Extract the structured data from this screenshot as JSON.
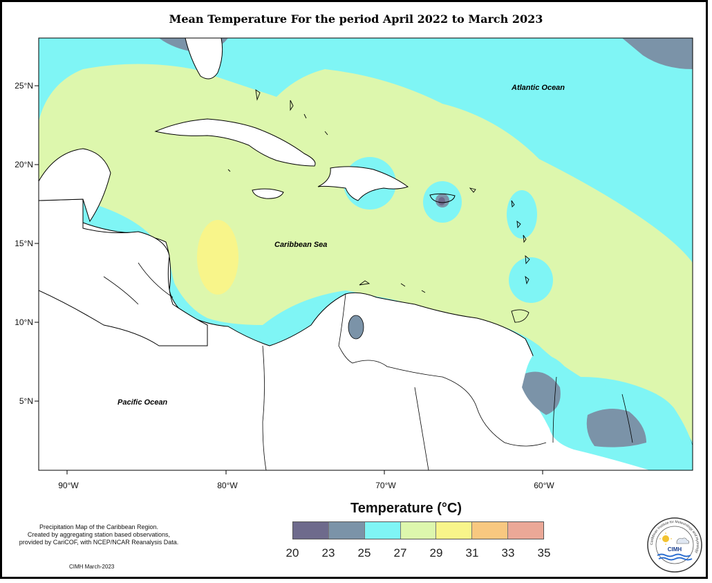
{
  "title": "Mean Temperature For the period April 2022 to March 2023",
  "map": {
    "labels": {
      "atlantic": "Atlantic Ocean",
      "caribbean": "Caribbean Sea",
      "pacific": "Pacific Ocean"
    },
    "lat_ticks": [
      "25°N",
      "20°N",
      "15°N",
      "10°N",
      "5°N"
    ],
    "lon_ticks": [
      "90°W",
      "80°W",
      "70°W",
      "60°W"
    ]
  },
  "legend": {
    "title": "Temperature (°C)",
    "ticks": [
      "20",
      "23",
      "25",
      "27",
      "29",
      "31",
      "33",
      "35"
    ],
    "colors": [
      "#6e6a8c",
      "#7b93a8",
      "#7ff5f5",
      "#ddf7ad",
      "#f8f58a",
      "#f8c880",
      "#eba897"
    ]
  },
  "colors": {
    "cyan": "#7ff5f5",
    "green": "#ddf7ad",
    "yellow": "#f8f58a",
    "slate": "#7b93a8",
    "dark": "#6e6a8c"
  },
  "footnote": {
    "line1": "Precipitation Map of the Caribbean Region.",
    "line2": "Created by aggregating station based observations,",
    "line3": "provided by CariCOF, with NCEP/NCAR Reanalysis Data."
  },
  "credit": "CIMH March-2023",
  "logo": {
    "text": "CIMH",
    "ring_text": "Caribbean Institute for Meteorology and Hydrology",
    "icon": "cimh-logo-icon"
  }
}
